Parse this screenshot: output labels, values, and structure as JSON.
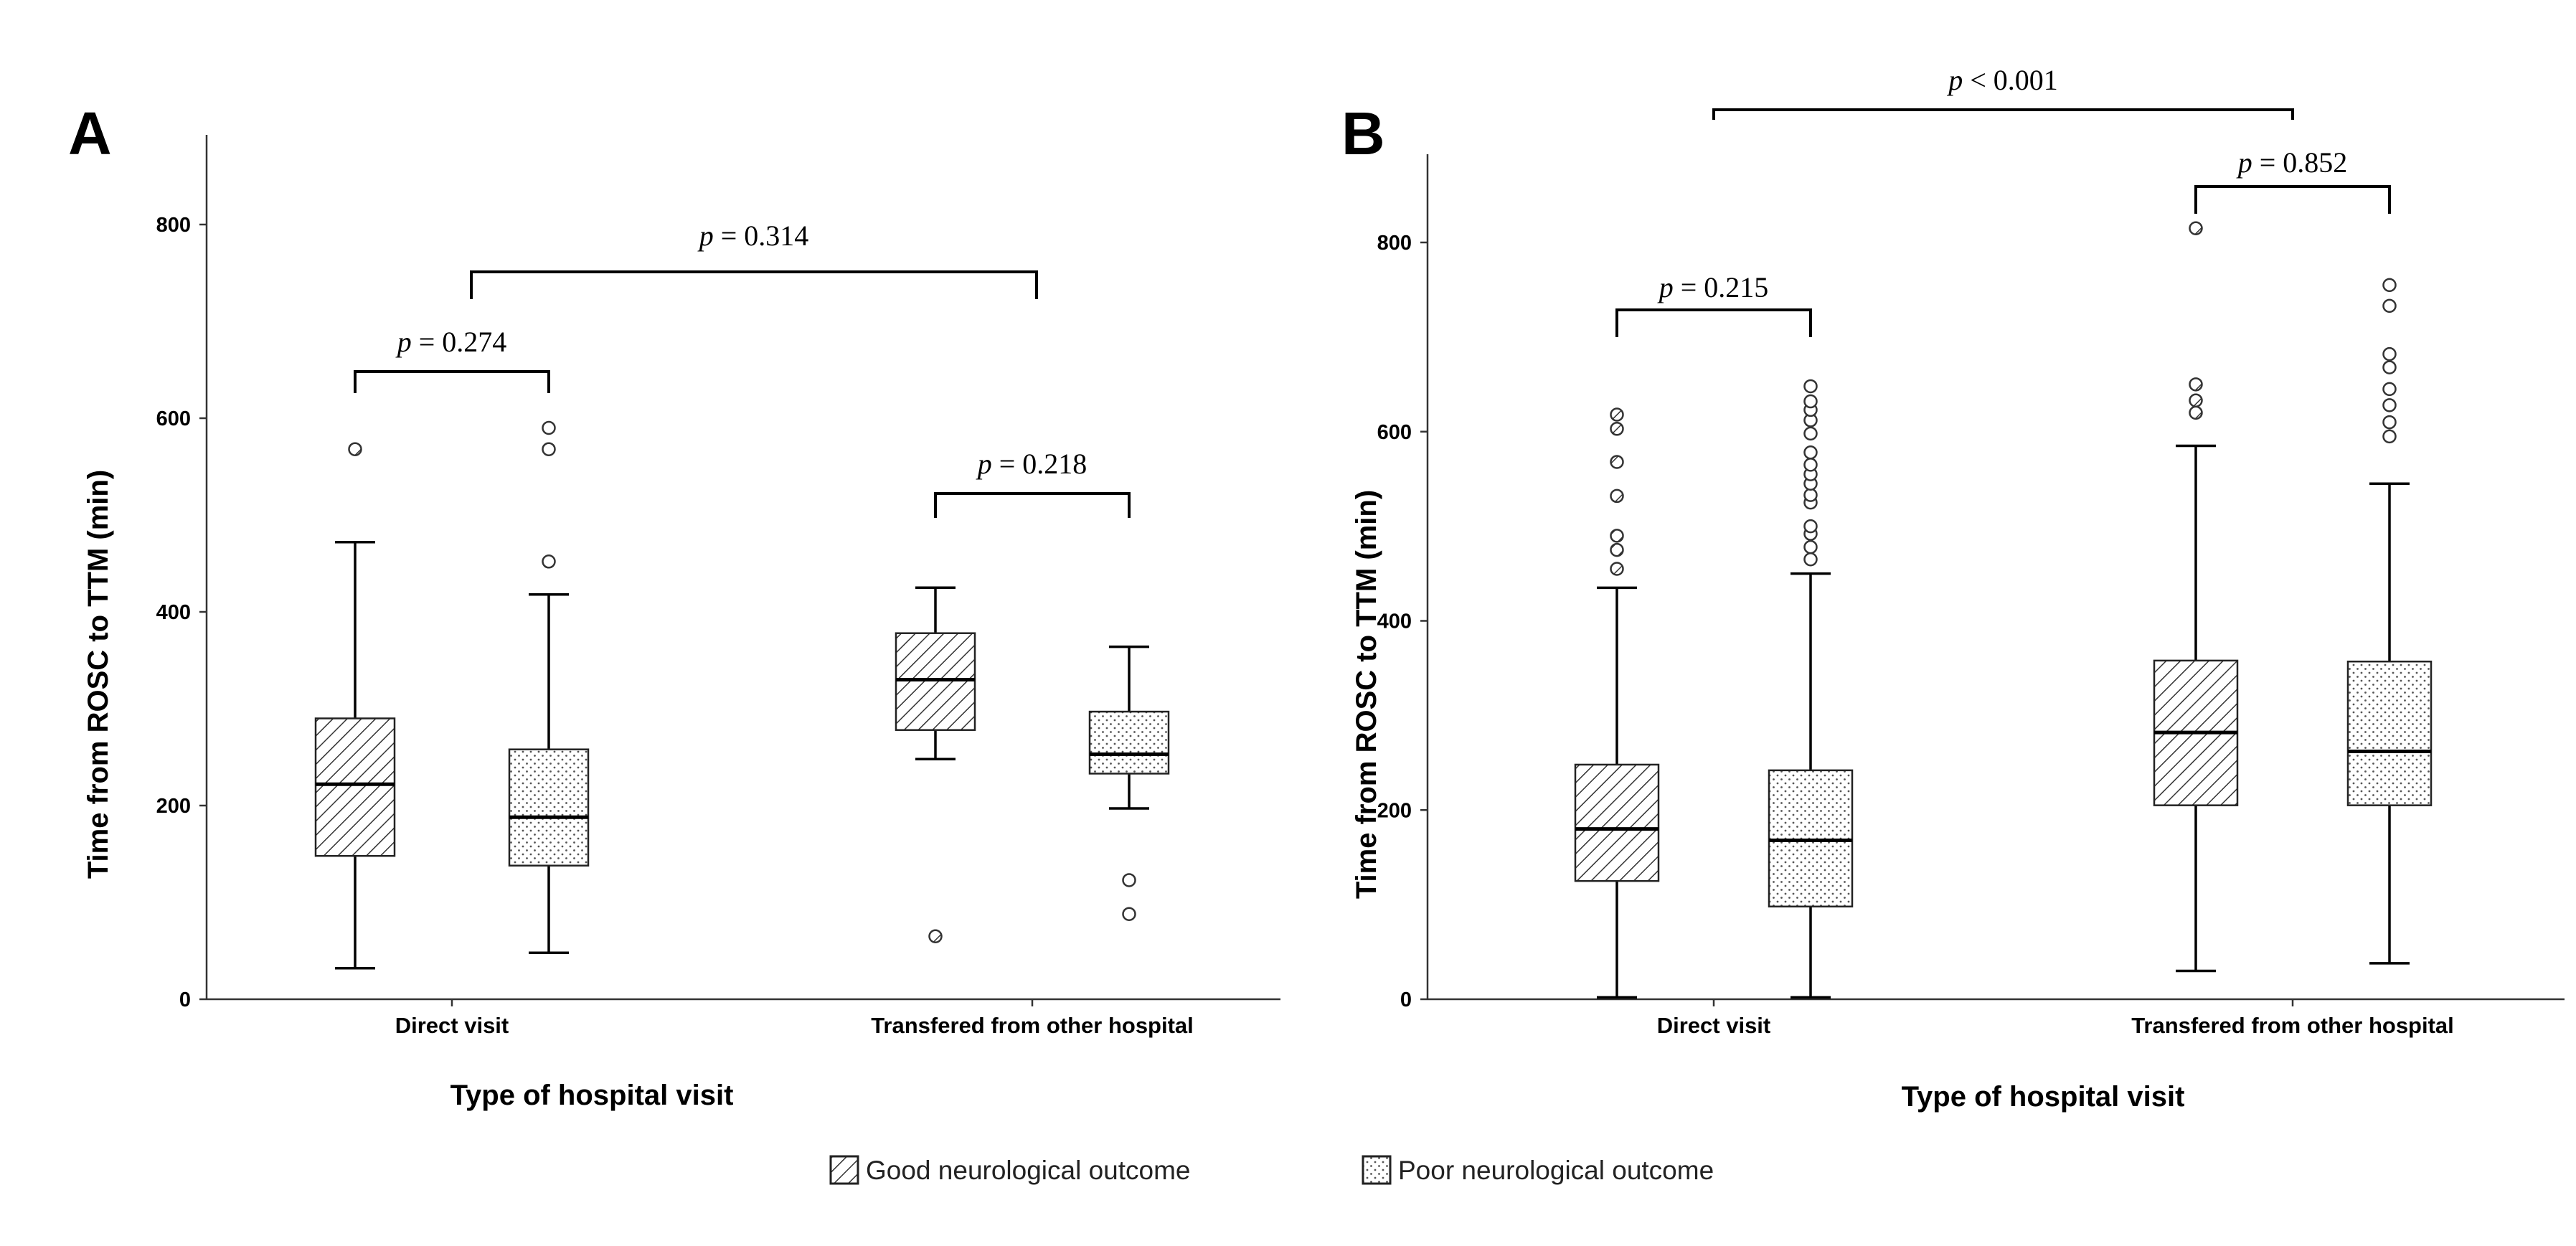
{
  "legend": {
    "items": [
      {
        "label": "Good neurological outcome",
        "pattern": "hatch"
      },
      {
        "label": "Poor neurological outcome",
        "pattern": "dots"
      }
    ]
  },
  "chart_data": [
    {
      "panel": "A",
      "type": "boxplot",
      "xlabel": "Type of hospital visit",
      "ylabel": "Time from ROSC to TTM (min)",
      "ylim": [
        0,
        890
      ],
      "yticks": [
        0,
        200,
        400,
        600,
        800
      ],
      "categories": [
        "Direct visit",
        "Transfered from other hospital"
      ],
      "series": [
        {
          "name": "Good neurological outcome",
          "boxes": [
            {
              "min": 32,
              "q1": 148,
              "median": 222,
              "q3": 290,
              "max": 472,
              "outliers": [
                568
              ]
            },
            {
              "min": 248,
              "q1": 278,
              "median": 330,
              "q3": 378,
              "max": 425,
              "outliers": [
                65
              ]
            }
          ]
        },
        {
          "name": "Poor neurological outcome",
          "boxes": [
            {
              "min": 48,
              "q1": 138,
              "median": 188,
              "q3": 258,
              "max": 418,
              "outliers": [
                452,
                568,
                590
              ]
            },
            {
              "min": 197,
              "q1": 233,
              "median": 253,
              "q3": 297,
              "max": 364,
              "outliers": [
                88,
                123
              ]
            }
          ]
        }
      ],
      "comparisons": [
        {
          "label": "p = 0.274",
          "groups": [
            "Direct visit: Good",
            "Direct visit: Poor"
          ]
        },
        {
          "label": "p = 0.218",
          "groups": [
            "Transfered: Good",
            "Transfered: Poor"
          ]
        },
        {
          "label": "p = 0.314",
          "groups": [
            "Direct visit",
            "Transfered from other hospital"
          ]
        }
      ]
    },
    {
      "panel": "B",
      "type": "boxplot",
      "xlabel": "Type of hospital visit",
      "ylabel": "Time from ROSC to TTM (min)",
      "ylim": [
        0,
        890
      ],
      "yticks": [
        0,
        200,
        400,
        600,
        800
      ],
      "categories": [
        "Direct visit",
        "Transfered from other hospital"
      ],
      "series": [
        {
          "name": "Good neurological outcome",
          "boxes": [
            {
              "min": 2,
              "q1": 125,
              "median": 180,
              "q3": 248,
              "max": 435,
              "outliers": [
                455,
                475,
                490,
                532,
                568,
                603,
                618
              ]
            },
            {
              "min": 30,
              "q1": 205,
              "median": 282,
              "q3": 358,
              "max": 585,
              "outliers": [
                620,
                633,
                650,
                815
              ]
            }
          ]
        },
        {
          "name": "Poor neurological outcome",
          "boxes": [
            {
              "min": 2,
              "q1": 98,
              "median": 168,
              "q3": 242,
              "max": 450,
              "outliers": [
                465,
                478,
                492,
                500,
                525,
                533,
                545,
                555,
                565,
                578,
                598,
                612,
                623,
                632,
                648
              ]
            },
            {
              "min": 38,
              "q1": 205,
              "median": 262,
              "q3": 357,
              "max": 545,
              "outliers": [
                595,
                610,
                628,
                645,
                668,
                682,
                733,
                755
              ]
            }
          ]
        }
      ],
      "comparisons": [
        {
          "label": "p = 0.215",
          "groups": [
            "Direct visit: Good",
            "Direct visit: Poor"
          ]
        },
        {
          "label": "p = 0.852",
          "groups": [
            "Transfered: Good",
            "Transfered: Poor"
          ]
        },
        {
          "label": "p < 0.001",
          "groups": [
            "Direct visit",
            "Transfered from other hospital"
          ]
        }
      ]
    }
  ]
}
